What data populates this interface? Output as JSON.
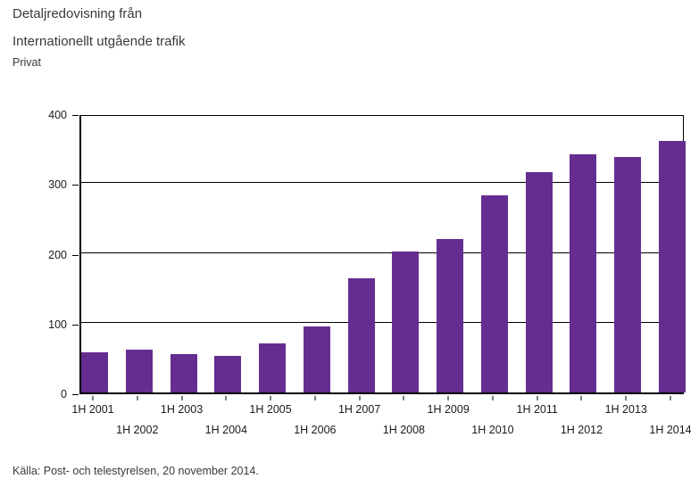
{
  "page": {
    "title_line1": "Detaljredovisning från",
    "title_line2": "Internationellt utgående trafik",
    "subtitle": "Privat",
    "source": "Källa: Post- och telestyrelsen, 20 november 2014."
  },
  "colors": {
    "bar": "#662D91",
    "axis": "#000000",
    "text": "#3a3a3a"
  },
  "chart_data": {
    "type": "bar",
    "title": "Internationellt utgående trafik",
    "subtitle": "Privat",
    "categories": [
      "1H 2001",
      "1H 2002",
      "1H 2003",
      "1H 2004",
      "1H 2005",
      "1H 2006",
      "1H 2007",
      "1H 2008",
      "1H 2009",
      "1H 2010",
      "1H 2011",
      "1H 2012",
      "1H 2013",
      "1H 2014"
    ],
    "values": [
      58,
      62,
      55,
      52,
      70,
      95,
      163,
      202,
      220,
      283,
      316,
      341,
      337,
      360
    ],
    "xlabel": "",
    "ylabel": "",
    "ylim": [
      0,
      400
    ],
    "yticks": [
      0,
      100,
      200,
      300,
      400
    ],
    "grid": true,
    "legend": "none",
    "bar_color": "#662D91",
    "x_label_layout": "alternating-two-rows"
  }
}
